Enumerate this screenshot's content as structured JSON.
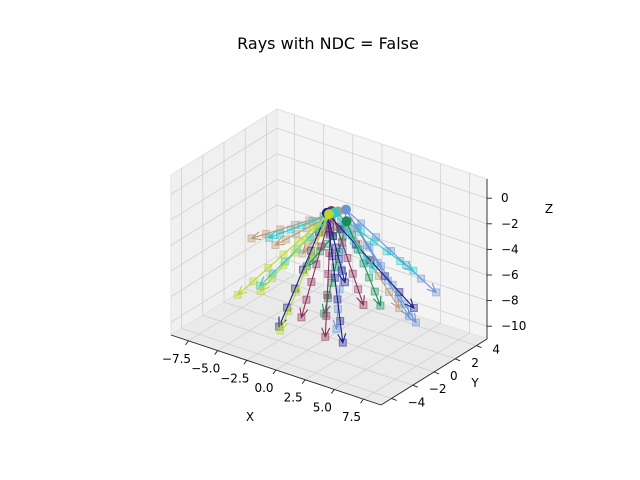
{
  "chart_data": {
    "type": "scatter",
    "projection": "3d",
    "title": "Rays with NDC = False",
    "xlabel": "X",
    "ylabel": "Y",
    "zlabel": "Z",
    "xlim": [
      -9,
      9
    ],
    "ylim": [
      -5,
      5
    ],
    "zlim": [
      -11,
      1.5
    ],
    "xticks": [
      -7.5,
      -5.0,
      -2.5,
      0.0,
      2.5,
      5.0,
      7.5
    ],
    "xtick_labels": [
      "−7.5",
      "−5.0",
      "−2.5",
      "0.0",
      "2.5",
      "5.0",
      "7.5"
    ],
    "yticks": [
      -4,
      -2,
      0,
      2,
      4
    ],
    "ytick_labels": [
      "−4",
      "−2",
      "0",
      "2",
      "4"
    ],
    "zticks": [
      -10,
      -8,
      -6,
      -4,
      -2,
      0
    ],
    "ztick_labels": [
      "−10",
      "−8",
      "−6",
      "−4",
      "−2",
      "0"
    ],
    "grid": true,
    "colors": {
      "pane_left": "#f0f0f0",
      "pane_back": "#f4f4f4",
      "pane_floor": "#eaeaea",
      "grid": "#d0d0d0"
    },
    "series": [
      {
        "color": "#b89a78",
        "origin": [
          0.5,
          0.3,
          -1.2
        ],
        "rays": [
          [
            -8.0,
            1.5,
            -6.5
          ],
          [
            -5.5,
            1.0,
            -6.0
          ],
          [
            -3.0,
            0.8,
            -5.8
          ],
          [
            4.2,
            2.0,
            -8.5
          ]
        ]
      },
      {
        "color": "#1a8c5a",
        "origin": [
          1.5,
          0.0,
          -1.5
        ],
        "rays": [
          [
            -3.0,
            1.2,
            -7.0
          ],
          [
            0.5,
            -1.0,
            -8.5
          ],
          [
            3.5,
            1.0,
            -8.0
          ]
        ]
      },
      {
        "color": "#6a96d8",
        "origin": [
          1.0,
          0.5,
          -1.0
        ],
        "rays": [
          [
            5.5,
            1.5,
            -8.5
          ],
          [
            7.0,
            0.5,
            -8.0
          ],
          [
            2.0,
            -1.5,
            -9.0
          ],
          [
            6.0,
            3.5,
            -7.5
          ]
        ]
      },
      {
        "color": "#8c2e5a",
        "origin": [
          0.2,
          0.0,
          -1.1
        ],
        "rays": [
          [
            1.5,
            -2.0,
            -9.5
          ],
          [
            -1.0,
            -1.5,
            -9.0
          ],
          [
            2.5,
            0.5,
            -8.0
          ]
        ]
      },
      {
        "color": "#1c1c8a",
        "origin": [
          0.0,
          -0.2,
          -1.2
        ],
        "rays": [
          [
            -2.0,
            -2.5,
            -9.5
          ],
          [
            3.0,
            -2.0,
            -9.5
          ],
          [
            5.0,
            2.5,
            -8.5
          ],
          [
            0.0,
            1.5,
            -7.5
          ]
        ]
      },
      {
        "color": "#2ac8cc",
        "origin": [
          0.3,
          0.2,
          -1.3
        ],
        "rays": [
          [
            -5.0,
            -1.0,
            -8.0
          ],
          [
            -6.5,
            1.5,
            -6.0
          ],
          [
            4.5,
            3.0,
            -6.0
          ],
          [
            1.5,
            2.5,
            -6.5
          ]
        ]
      },
      {
        "color": "#b8d830",
        "origin": [
          0.0,
          0.0,
          -1.4
        ],
        "rays": [
          [
            -6.0,
            -2.0,
            -8.5
          ],
          [
            -4.5,
            -1.5,
            -8.0
          ],
          [
            -1.0,
            -3.5,
            -9.0
          ]
        ]
      }
    ]
  }
}
